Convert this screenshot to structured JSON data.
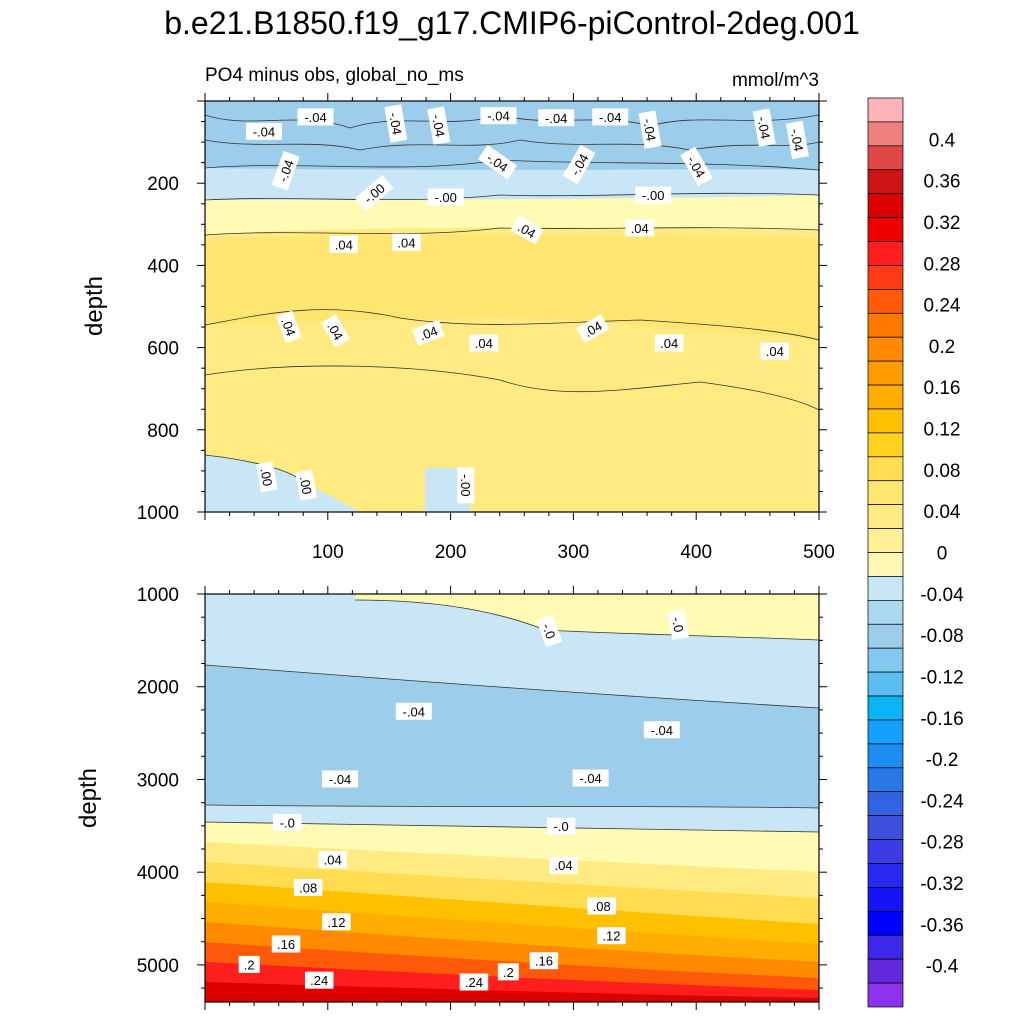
{
  "title": "b.e21.B1850.f19_g17.CMIP6-piControl-2deg.001",
  "subtitle_left": "PO4 minus obs, global_no_ms",
  "subtitle_right": "mmol/m^3",
  "chart_data": [
    {
      "type": "contour",
      "panel": "upper",
      "xlabel": "",
      "ylabel": "depth",
      "xlim": [
        0,
        500
      ],
      "ylim": [
        1000,
        0
      ],
      "x_ticks": [
        100,
        200,
        300,
        400,
        500
      ],
      "y_ticks": [
        200,
        400,
        600,
        800,
        1000
      ],
      "contour_labels": [
        {
          "text": "-.04",
          "x": 48,
          "y": 75,
          "rot": 0
        },
        {
          "text": "-.04",
          "x": 90,
          "y": 40,
          "rot": 0
        },
        {
          "text": "-.04",
          "x": 155,
          "y": 55,
          "rot": 80
        },
        {
          "text": "-.04",
          "x": 190,
          "y": 60,
          "rot": 80
        },
        {
          "text": "-.04",
          "x": 239,
          "y": 37,
          "rot": 0
        },
        {
          "text": "-.04",
          "x": 286,
          "y": 42,
          "rot": 0
        },
        {
          "text": "-.04",
          "x": 330,
          "y": 40,
          "rot": 0
        },
        {
          "text": "-.04",
          "x": 362,
          "y": 70,
          "rot": 80
        },
        {
          "text": "-.04",
          "x": 455,
          "y": 65,
          "rot": 80
        },
        {
          "text": "-.04",
          "x": 482,
          "y": 95,
          "rot": 80
        },
        {
          "text": "-.04",
          "x": 66,
          "y": 170,
          "rot": -70
        },
        {
          "text": "-.04",
          "x": 238,
          "y": 150,
          "rot": 35
        },
        {
          "text": "-.04",
          "x": 305,
          "y": 155,
          "rot": -60
        },
        {
          "text": "-.04",
          "x": 400,
          "y": 160,
          "rot": 60
        },
        {
          "text": "-.00",
          "x": 138,
          "y": 225,
          "rot": -40
        },
        {
          "text": "-.00",
          "x": 196,
          "y": 235,
          "rot": 0
        },
        {
          "text": "-.00",
          "x": 365,
          "y": 230,
          "rot": 0
        },
        {
          "text": ".04",
          "x": 113,
          "y": 350,
          "rot": 0
        },
        {
          "text": ".04",
          "x": 164,
          "y": 345,
          "rot": 0
        },
        {
          "text": ".04",
          "x": 262,
          "y": 315,
          "rot": 30
        },
        {
          "text": ".04",
          "x": 354,
          "y": 310,
          "rot": 0
        },
        {
          "text": ".04",
          "x": 68,
          "y": 550,
          "rot": 70
        },
        {
          "text": ".04",
          "x": 106,
          "y": 560,
          "rot": 60
        },
        {
          "text": ".04",
          "x": 182,
          "y": 565,
          "rot": -20
        },
        {
          "text": ".04",
          "x": 227,
          "y": 590,
          "rot": 0
        },
        {
          "text": ".04",
          "x": 316,
          "y": 555,
          "rot": -30
        },
        {
          "text": ".04",
          "x": 378,
          "y": 590,
          "rot": 0
        },
        {
          "text": ".04",
          "x": 464,
          "y": 610,
          "rot": 0
        },
        {
          "text": ".00",
          "x": 50,
          "y": 915,
          "rot": 80
        },
        {
          "text": ".00",
          "x": 82,
          "y": 935,
          "rot": 80
        },
        {
          "text": "-.00",
          "x": 212,
          "y": 935,
          "rot": 90
        }
      ]
    },
    {
      "type": "contour",
      "panel": "lower",
      "xlabel": "",
      "ylabel": "depth",
      "xlim": [
        0,
        500
      ],
      "ylim": [
        5400,
        1000
      ],
      "x_ticks": [
        100,
        200,
        300,
        400,
        500
      ],
      "y_ticks": [
        1000,
        2000,
        3000,
        4000,
        5000
      ],
      "contour_labels": [
        {
          "text": "-.0",
          "x": 280,
          "y": 1400,
          "rot": 70
        },
        {
          "text": "-.0",
          "x": 385,
          "y": 1330,
          "rot": 80
        },
        {
          "text": "-.04",
          "x": 170,
          "y": 2270,
          "rot": 0
        },
        {
          "text": "-.04",
          "x": 372,
          "y": 2470,
          "rot": 0
        },
        {
          "text": "-.04",
          "x": 110,
          "y": 3000,
          "rot": 0
        },
        {
          "text": "-.04",
          "x": 314,
          "y": 2990,
          "rot": 0
        },
        {
          "text": "-.0",
          "x": 67,
          "y": 3470,
          "rot": 0
        },
        {
          "text": "-.0",
          "x": 290,
          "y": 3510,
          "rot": 0
        },
        {
          "text": ".04",
          "x": 104,
          "y": 3870,
          "rot": 0
        },
        {
          "text": ".04",
          "x": 292,
          "y": 3930,
          "rot": 0
        },
        {
          "text": ".08",
          "x": 84,
          "y": 4170,
          "rot": 0
        },
        {
          "text": ".08",
          "x": 323,
          "y": 4370,
          "rot": 0
        },
        {
          "text": ".12",
          "x": 107,
          "y": 4540,
          "rot": 0
        },
        {
          "text": ".12",
          "x": 331,
          "y": 4690,
          "rot": 0
        },
        {
          "text": ".16",
          "x": 66,
          "y": 4780,
          "rot": 0
        },
        {
          "text": ".16",
          "x": 276,
          "y": 4960,
          "rot": 0
        },
        {
          "text": ".2",
          "x": 36,
          "y": 5000,
          "rot": 0
        },
        {
          "text": ".2",
          "x": 247,
          "y": 5080,
          "rot": 0
        },
        {
          "text": ".24",
          "x": 93,
          "y": 5170,
          "rot": 0
        },
        {
          "text": ".24",
          "x": 219,
          "y": 5190,
          "rot": 0
        }
      ]
    }
  ],
  "colorbar": {
    "labels": [
      "0.4",
      "0.36",
      "0.32",
      "0.28",
      "0.24",
      "0.2",
      "0.16",
      "0.12",
      "0.08",
      "0.04",
      "0",
      "-0.04",
      "-0.08",
      "-0.12",
      "-0.16",
      "-0.2",
      "-0.24",
      "-0.28",
      "-0.32",
      "-0.36",
      "-0.4"
    ],
    "colors": [
      "#FDB4B8",
      "#F08080",
      "#E04848",
      "#CC1414",
      "#DC0000",
      "#F00000",
      "#FF1E1E",
      "#FF3A14",
      "#FF5A0A",
      "#FF7800",
      "#FF8A00",
      "#FF9C00",
      "#FFAE00",
      "#FFC000",
      "#FFD21E",
      "#FFDC50",
      "#FFE670",
      "#FFEB82",
      "#FFF096",
      "#FFF8B4",
      "#C8E6F5",
      "#AAD9F0",
      "#9CCEEB",
      "#82C8F0",
      "#5CBEF0",
      "#0AB4F5",
      "#14A0FA",
      "#1E8CF5",
      "#2878E6",
      "#3264E1",
      "#3C50DC",
      "#3C3CE6",
      "#2828F0",
      "#1414F5",
      "#0000FF",
      "#3C28E6",
      "#6428DC",
      "#8C32F0"
    ]
  }
}
